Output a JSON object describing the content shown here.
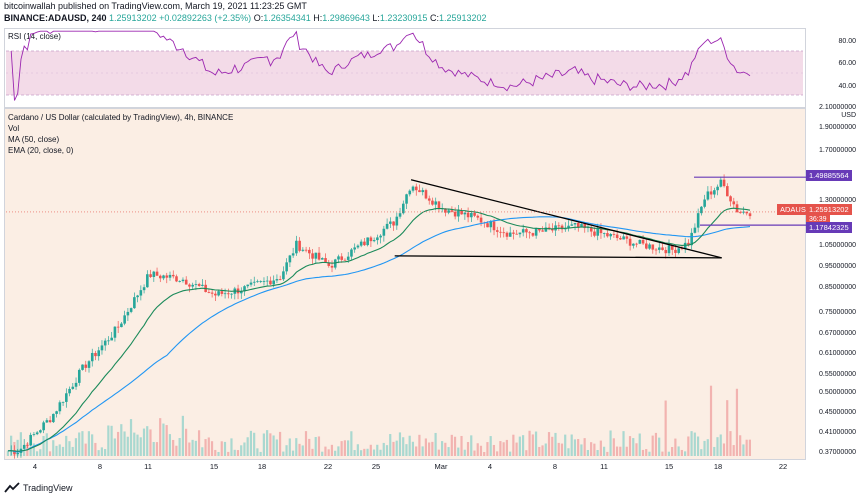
{
  "header": {
    "publisher_line": "bitcoinwallah published on TradingView.com, March 19, 2021 11:23:25 GMT",
    "symbol": "BINANCE:ADAUSD, 240",
    "last": "1.25913202",
    "change": "+0.02892263 (+2.35%)",
    "o_label": "O:",
    "o": "1.26354341",
    "h_label": "H:",
    "h": "1.29869643",
    "l_label": "L:",
    "l": "1.23230915",
    "c_label": "C:",
    "c": "1.25913202"
  },
  "rsi_pane": {
    "label": "RSI (14, close)",
    "ticks": [
      "80.00",
      "60.00",
      "40.00"
    ],
    "color": "#9c27b0"
  },
  "main_pane": {
    "title": "Cardano / US Dollar (calculated by TradingView), 4h, BINANCE",
    "indicators": [
      "Vol",
      "MA (50, close)",
      "EMA (20, close, 0)"
    ],
    "currency": "USD"
  },
  "price_axis": [
    "2.10000000",
    "1.90000000",
    "1.70000000",
    "1.49885564",
    "1.30000000",
    "1.17842325",
    "1.05000000",
    "0.95000000",
    "0.85000000",
    "0.75000000",
    "0.67000000",
    "0.61000000",
    "0.55000000",
    "0.50000000",
    "0.45000000",
    "0.41000000",
    "0.37000000"
  ],
  "badges": {
    "symbol": "ADAUSD",
    "price": "1.25913202",
    "countdown": "36:39",
    "resistance": "1.49885564",
    "support": "1.17842325",
    "red": "#e5534b",
    "purple": "#673ab7"
  },
  "x_axis": [
    "4",
    "8",
    "11",
    "15",
    "18",
    "22",
    "25",
    "Mar",
    "4",
    "8",
    "11",
    "15",
    "18",
    "22"
  ],
  "footer": {
    "brand": "TradingView"
  },
  "colors": {
    "up": "#26a69a",
    "down": "#ef5350",
    "ma50": "#2196f3",
    "ema20": "#1b8a5a",
    "bg": "#fbeee4"
  },
  "chart_data": [
    {
      "type": "candlestick",
      "title": "Cardano / US Dollar (calculated by TradingView), 4h, BINANCE",
      "x": [
        "4",
        "8",
        "11",
        "15",
        "18",
        "22",
        "25",
        "Mar",
        "4",
        "8",
        "11",
        "15",
        "18",
        "22"
      ],
      "y_scale": "log",
      "ylim": [
        0.37,
        2.1
      ],
      "anchor_prices": [
        {
          "date": "Feb 3",
          "price": 0.38
        },
        {
          "date": "Feb 5",
          "price": 0.45
        },
        {
          "date": "Feb 7",
          "price": 0.58
        },
        {
          "date": "Feb 9",
          "price": 0.7
        },
        {
          "date": "Feb 11",
          "price": 0.92
        },
        {
          "date": "Feb 13",
          "price": 0.9
        },
        {
          "date": "Feb 15",
          "price": 0.83
        },
        {
          "date": "Feb 17",
          "price": 0.86
        },
        {
          "date": "Feb 19",
          "price": 0.91
        },
        {
          "date": "Feb 20",
          "price": 1.07
        },
        {
          "date": "Feb 22",
          "price": 0.96
        },
        {
          "date": "Feb 24",
          "price": 1.07
        },
        {
          "date": "Feb 26",
          "price": 1.2
        },
        {
          "date": "Feb 27",
          "price": 1.45
        },
        {
          "date": "Mar 1",
          "price": 1.28
        },
        {
          "date": "Mar 3",
          "price": 1.22
        },
        {
          "date": "Mar 5",
          "price": 1.13
        },
        {
          "date": "Mar 7",
          "price": 1.14
        },
        {
          "date": "Mar 9",
          "price": 1.17
        },
        {
          "date": "Mar 11",
          "price": 1.12
        },
        {
          "date": "Mar 13",
          "price": 1.07
        },
        {
          "date": "Mar 15",
          "price": 1.04
        },
        {
          "date": "Mar 16",
          "price": 1.08
        },
        {
          "date": "Mar 17",
          "price": 1.36
        },
        {
          "date": "Mar 18",
          "price": 1.46
        },
        {
          "date": "Mar 19",
          "price": 1.26
        }
      ],
      "horizontal_lines": [
        1.49885564,
        1.17842325
      ],
      "trendlines": [
        {
          "from": {
            "date": "Feb 27",
            "price": 1.48
          },
          "to": {
            "date": "Mar 18",
            "price": 1.0
          }
        },
        {
          "from": {
            "date": "Feb 26",
            "price": 1.01
          },
          "to": {
            "date": "Mar 18",
            "price": 1.0
          }
        }
      ],
      "series": [
        {
          "name": "MA (50, close)"
        },
        {
          "name": "EMA (20, close, 0)"
        },
        {
          "name": "Vol"
        }
      ]
    },
    {
      "type": "line",
      "title": "RSI (14, close)",
      "ylim": [
        20,
        90
      ],
      "ticks": [
        80,
        60,
        40
      ],
      "y_last": 52
    }
  ]
}
